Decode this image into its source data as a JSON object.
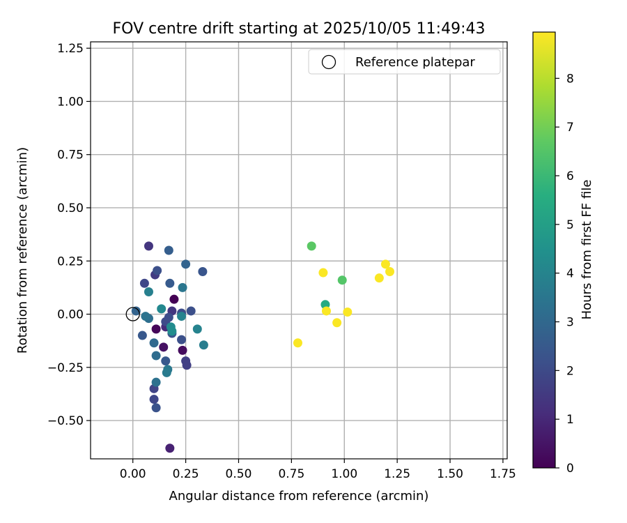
{
  "chart_data": {
    "type": "scatter",
    "title": "FOV centre drift starting at 2025/10/05 11:49:43",
    "xlabel": "Angular distance from reference (arcmin)",
    "ylabel": "Rotation from reference (arcmin)",
    "xlim": [
      -0.2,
      1.77
    ],
    "ylim": [
      -0.68,
      1.28
    ],
    "xticks": [
      0.0,
      0.25,
      0.5,
      0.75,
      1.0,
      1.25,
      1.5,
      1.75
    ],
    "xtick_labels": [
      "0.00",
      "0.25",
      "0.50",
      "0.75",
      "1.00",
      "1.25",
      "1.50",
      "1.75"
    ],
    "yticks": [
      -0.5,
      -0.25,
      0.0,
      0.25,
      0.5,
      0.75,
      1.0,
      1.25
    ],
    "ytick_labels": [
      "−0.50",
      "−0.25",
      "0.00",
      "0.25",
      "0.50",
      "0.75",
      "1.00",
      "1.25"
    ],
    "grid": true,
    "legend": {
      "placement": "top-right",
      "entries": [
        "Reference platepar"
      ]
    },
    "reference_point": {
      "x": 0.0,
      "y": 0.0,
      "label": "Reference platepar"
    },
    "colorbar": {
      "label": "Hours from first FF file",
      "range": [
        0,
        8.95
      ],
      "ticks": [
        0,
        1,
        2,
        3,
        4,
        5,
        6,
        7,
        8
      ],
      "tick_labels": [
        "0",
        "1",
        "2",
        "3",
        "4",
        "5",
        "6",
        "7",
        "8"
      ],
      "colormap": "viridis"
    },
    "points": [
      {
        "x": 0.195,
        "y": 0.07,
        "c": 0.0
      },
      {
        "x": 0.11,
        "y": -0.07,
        "c": 0.1
      },
      {
        "x": 0.235,
        "y": -0.17,
        "c": 0.2
      },
      {
        "x": 0.145,
        "y": -0.155,
        "c": 0.3
      },
      {
        "x": 0.175,
        "y": -0.63,
        "c": 0.6
      },
      {
        "x": 0.155,
        "y": -0.06,
        "c": 0.8
      },
      {
        "x": 0.185,
        "y": 0.015,
        "c": 1.0
      },
      {
        "x": 0.075,
        "y": 0.32,
        "c": 1.0
      },
      {
        "x": 0.105,
        "y": 0.185,
        "c": 1.1
      },
      {
        "x": 0.25,
        "y": -0.22,
        "c": 1.2
      },
      {
        "x": 0.255,
        "y": -0.24,
        "c": 1.2
      },
      {
        "x": 0.1,
        "y": -0.35,
        "c": 1.3
      },
      {
        "x": 0.1,
        "y": -0.4,
        "c": 1.4
      },
      {
        "x": 0.055,
        "y": 0.145,
        "c": 1.4
      },
      {
        "x": 0.155,
        "y": -0.035,
        "c": 1.5
      },
      {
        "x": 0.17,
        "y": -0.015,
        "c": 1.6
      },
      {
        "x": 0.23,
        "y": 0.005,
        "c": 1.6
      },
      {
        "x": 0.275,
        "y": 0.015,
        "c": 1.7
      },
      {
        "x": 0.115,
        "y": 0.205,
        "c": 1.7
      },
      {
        "x": 0.23,
        "y": -0.12,
        "c": 1.7
      },
      {
        "x": 0.185,
        "y": -0.09,
        "c": 1.8
      },
      {
        "x": 0.11,
        "y": -0.44,
        "c": 1.8
      },
      {
        "x": 0.33,
        "y": 0.2,
        "c": 1.9
      },
      {
        "x": 0.155,
        "y": -0.22,
        "c": 2.0
      },
      {
        "x": 0.045,
        "y": -0.1,
        "c": 2.0
      },
      {
        "x": 0.175,
        "y": 0.145,
        "c": 2.1
      },
      {
        "x": 0.17,
        "y": 0.3,
        "c": 2.2
      },
      {
        "x": 0.25,
        "y": 0.235,
        "c": 2.4
      },
      {
        "x": 0.015,
        "y": 0.015,
        "c": 2.4
      },
      {
        "x": 0.1,
        "y": -0.135,
        "c": 2.6
      },
      {
        "x": 0.11,
        "y": -0.195,
        "c": 2.7
      },
      {
        "x": 0.075,
        "y": -0.02,
        "c": 2.8
      },
      {
        "x": 0.11,
        "y": -0.32,
        "c": 2.9
      },
      {
        "x": 0.06,
        "y": -0.01,
        "c": 3.0
      },
      {
        "x": 0.235,
        "y": 0.125,
        "c": 3.1
      },
      {
        "x": 0.165,
        "y": -0.26,
        "c": 3.2
      },
      {
        "x": 0.16,
        "y": -0.275,
        "c": 3.3
      },
      {
        "x": 0.335,
        "y": -0.145,
        "c": 3.4
      },
      {
        "x": 0.075,
        "y": 0.105,
        "c": 3.5
      },
      {
        "x": 0.305,
        "y": -0.07,
        "c": 3.6
      },
      {
        "x": 0.23,
        "y": -0.01,
        "c": 3.6
      },
      {
        "x": 0.135,
        "y": 0.025,
        "c": 3.8
      },
      {
        "x": 0.18,
        "y": -0.06,
        "c": 3.9
      },
      {
        "x": 0.185,
        "y": -0.08,
        "c": 4.0
      },
      {
        "x": 0.91,
        "y": 0.045,
        "c": 5.2
      },
      {
        "x": 0.99,
        "y": 0.16,
        "c": 6.4
      },
      {
        "x": 0.845,
        "y": 0.32,
        "c": 6.5
      },
      {
        "x": 0.78,
        "y": -0.135,
        "c": 8.9
      },
      {
        "x": 0.9,
        "y": 0.195,
        "c": 8.9
      },
      {
        "x": 0.915,
        "y": 0.015,
        "c": 8.9
      },
      {
        "x": 0.965,
        "y": -0.04,
        "c": 8.9
      },
      {
        "x": 1.015,
        "y": 0.01,
        "c": 8.9
      },
      {
        "x": 1.165,
        "y": 0.17,
        "c": 8.9
      },
      {
        "x": 1.195,
        "y": 0.235,
        "c": 8.9
      },
      {
        "x": 1.215,
        "y": 0.2,
        "c": 8.9
      }
    ]
  }
}
